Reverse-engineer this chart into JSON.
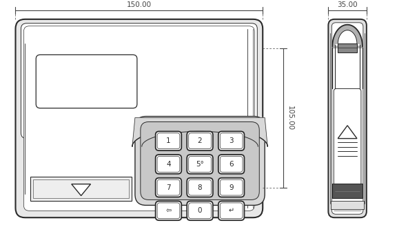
{
  "bg_color": "#ffffff",
  "line_color": "#2a2a2a",
  "lw": 1.0,
  "dim_color": "#444444",
  "dim_150": "150.00",
  "dim_35": "35.00",
  "dim_105": "105.00",
  "key_labels": [
    [
      "1",
      "2",
      "3"
    ],
    [
      "4",
      "5°",
      "6"
    ],
    [
      "7",
      "8",
      "9"
    ],
    [
      "⇦",
      "0",
      "↵"
    ]
  ]
}
